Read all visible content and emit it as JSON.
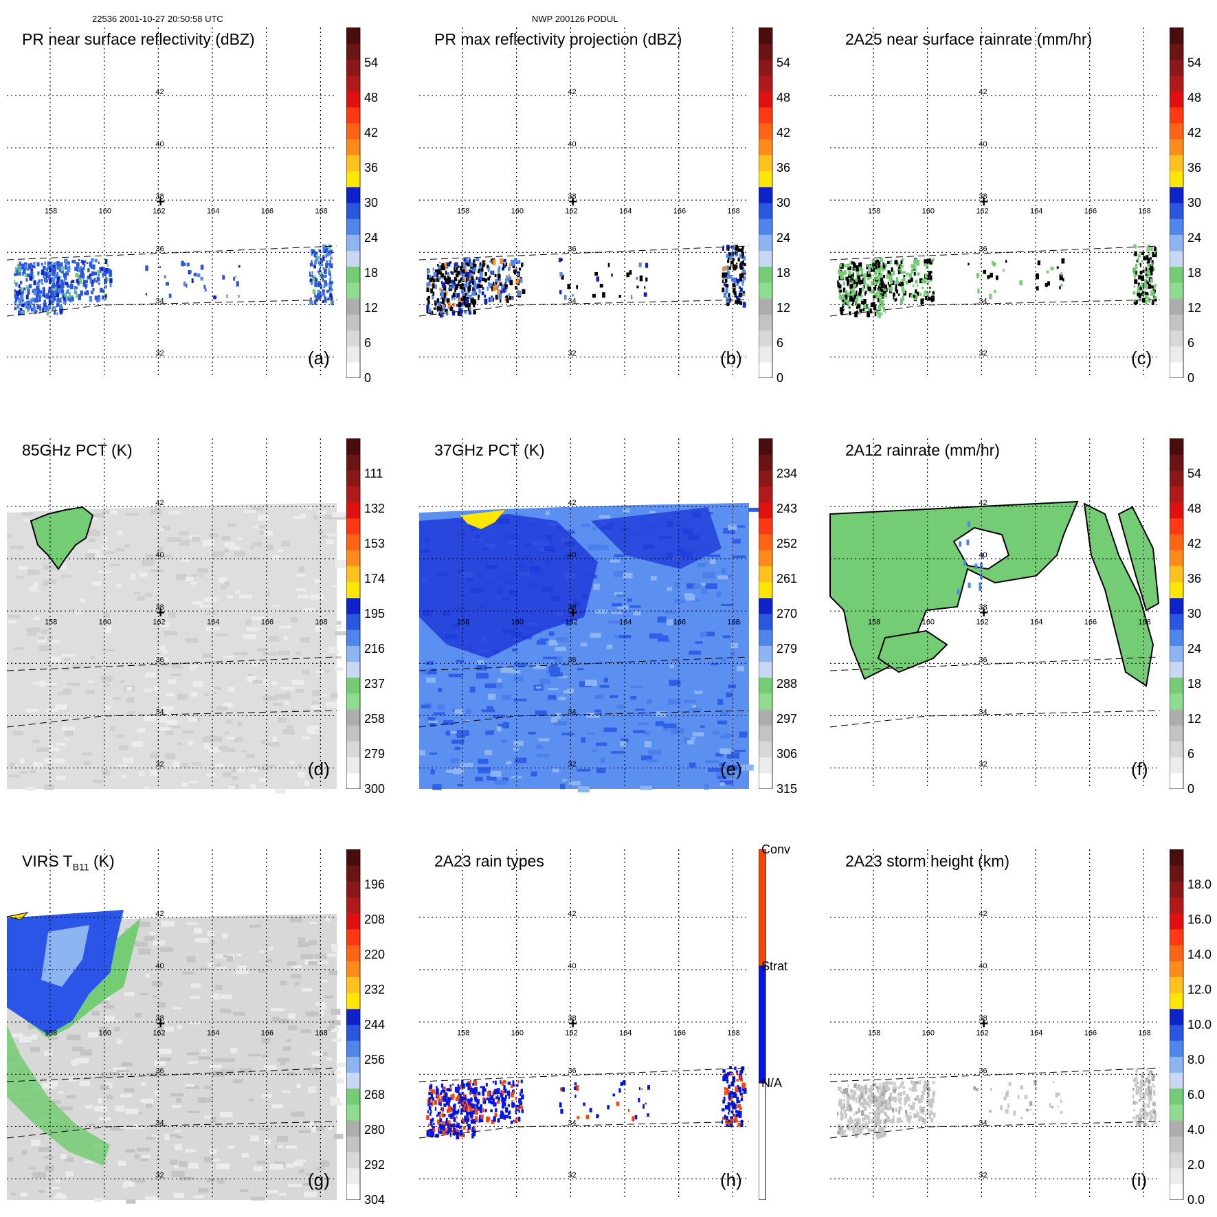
{
  "header": {
    "left": "22536 2001-10-27 20:50:58 UTC",
    "center": "NWP 200126 PODUL"
  },
  "map": {
    "lon_labels": [
      "158",
      "160",
      "162",
      "164",
      "166",
      "168"
    ],
    "lat_labels": [
      "42",
      "40",
      "38",
      "36",
      "34",
      "32"
    ],
    "center_marker": "+"
  },
  "chart_data": [
    {
      "id": "a",
      "type": "heatmap",
      "title": "PR near surface reflectivity (dBZ)",
      "panel_label": "(a)",
      "field": "swath-rain-cells",
      "colorbar": {
        "ticks": [
          "0",
          "6",
          "12",
          "18",
          "24",
          "30",
          "36",
          "42",
          "48",
          "54"
        ],
        "range": [
          0,
          60
        ]
      }
    },
    {
      "id": "b",
      "type": "heatmap",
      "title": "PR max reflectivity projection (dBZ)",
      "panel_label": "(b)",
      "field": "swath-rain-cells-contoured",
      "colorbar": {
        "ticks": [
          "0",
          "6",
          "12",
          "18",
          "24",
          "30",
          "36",
          "42",
          "48",
          "54"
        ],
        "range": [
          0,
          60
        ]
      }
    },
    {
      "id": "c",
      "type": "heatmap",
      "title": "2A25 near surface rainrate (mm/hr)",
      "panel_label": "(c)",
      "field": "swath-rain-cells-green",
      "colorbar": {
        "ticks": [
          "0",
          "6",
          "12",
          "18",
          "24",
          "30",
          "36",
          "42",
          "48",
          "54"
        ],
        "range": [
          0,
          60
        ]
      }
    },
    {
      "id": "d",
      "type": "heatmap",
      "title": "85GHz PCT (K)",
      "panel_label": "(d)",
      "field": "tmi-gray",
      "colorbar": {
        "ticks": [
          "300",
          "279",
          "258",
          "237",
          "216",
          "195",
          "174",
          "153",
          "132",
          "111"
        ],
        "range": [
          300,
          90
        ]
      }
    },
    {
      "id": "e",
      "type": "heatmap",
      "title": "37GHz PCT (K)",
      "panel_label": "(e)",
      "field": "tmi-blue",
      "colorbar": {
        "ticks": [
          "315",
          "306",
          "297",
          "288",
          "279",
          "270",
          "261",
          "252",
          "243",
          "234"
        ],
        "range": [
          315,
          225
        ]
      }
    },
    {
      "id": "f",
      "type": "heatmap",
      "title": "2A12 rainrate (mm/hr)",
      "panel_label": "(f)",
      "field": "tmi-green-rain",
      "colorbar": {
        "ticks": [
          "0",
          "6",
          "12",
          "18",
          "24",
          "30",
          "36",
          "42",
          "48",
          "54"
        ],
        "range": [
          0,
          60
        ]
      }
    },
    {
      "id": "g",
      "type": "heatmap",
      "title_main": "VIRS T",
      "title_sub": "B11",
      "title_end": " (K)",
      "panel_label": "(g)",
      "field": "virs-clouds",
      "colorbar": {
        "ticks": [
          "304",
          "292",
          "280",
          "268",
          "256",
          "244",
          "232",
          "220",
          "208",
          "196"
        ],
        "range": [
          304,
          184
        ]
      }
    },
    {
      "id": "h",
      "type": "heatmap",
      "title": "2A23 rain types",
      "panel_label": "(h)",
      "field": "rain-types",
      "colorbar": {
        "categories": [
          "N/A",
          "Strat",
          "Conv"
        ]
      }
    },
    {
      "id": "i",
      "type": "heatmap",
      "title": "2A23 storm height (km)",
      "panel_label": "(i)",
      "field": "storm-height",
      "colorbar": {
        "ticks": [
          "0.0",
          "2.0",
          "4.0",
          "6.0",
          "8.0",
          "10.0",
          "12.0",
          "14.0",
          "16.0",
          "18.0"
        ],
        "range": [
          0,
          20
        ]
      }
    }
  ],
  "colors": {
    "scale": [
      "#ffffff",
      "#ececec",
      "#d8d8d8",
      "#c3c3c3",
      "#adadad",
      "#8fdb8f",
      "#74cc74",
      "#c9d7f5",
      "#8db5f2",
      "#4f86ec",
      "#2b57e0",
      "#0d22c8",
      "#ffe600",
      "#ffc21c",
      "#ff8c1a",
      "#ff6414",
      "#ff3a12",
      "#e01010",
      "#b01a1a",
      "#8a1818",
      "#6a1414",
      "#4a0d0d"
    ],
    "conv": "#ff4400",
    "strat": "#0015e8",
    "na": "#ffffff"
  }
}
